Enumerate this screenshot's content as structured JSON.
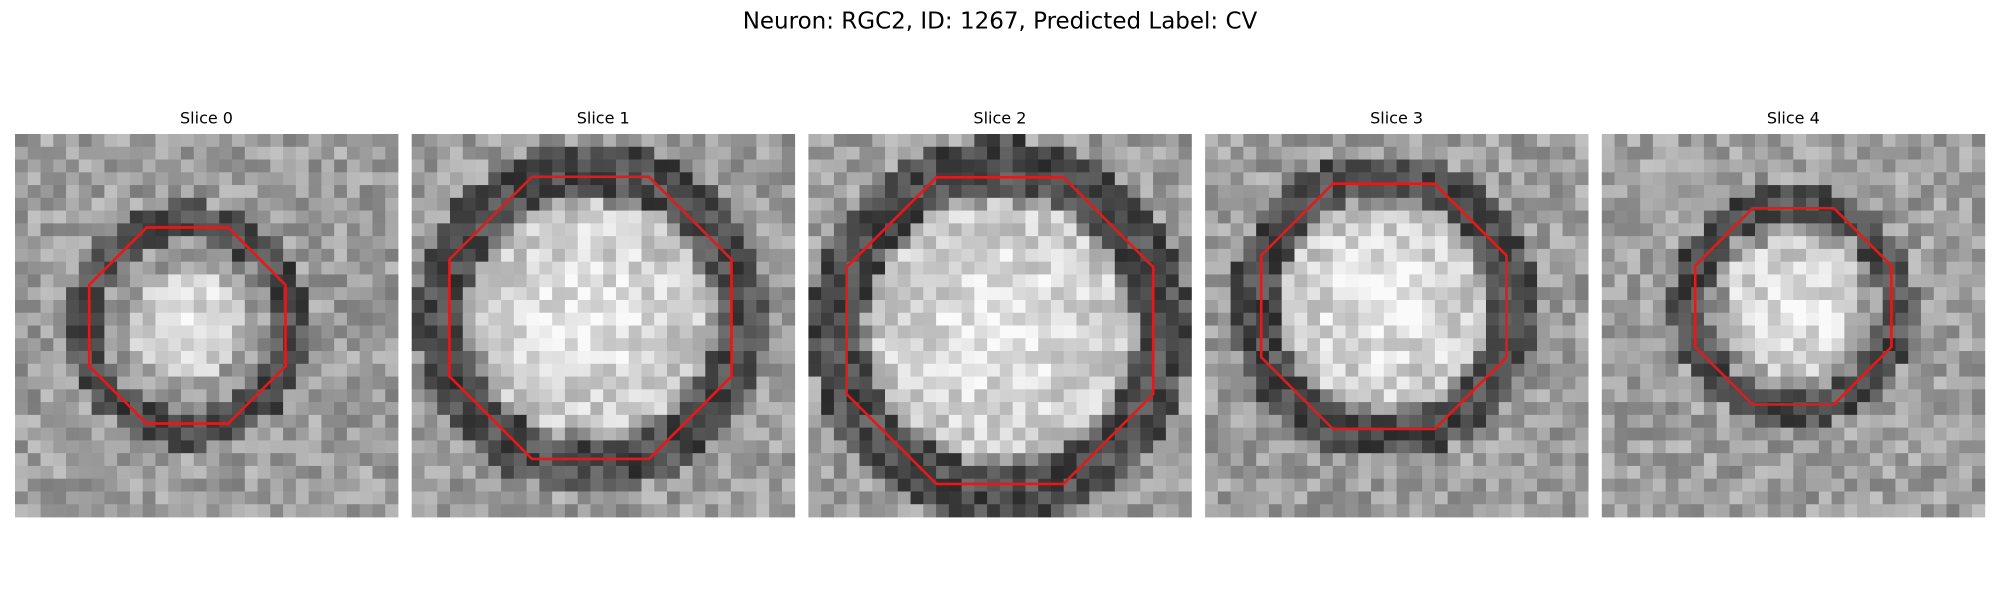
{
  "title": "Neuron: RGC2, ID: 1267, Predicted Label: CV",
  "panels": [
    {
      "title": "Slice 0"
    },
    {
      "title": "Slice 1"
    },
    {
      "title": "Slice 2"
    },
    {
      "title": "Slice 3"
    },
    {
      "title": "Slice 4"
    }
  ]
}
